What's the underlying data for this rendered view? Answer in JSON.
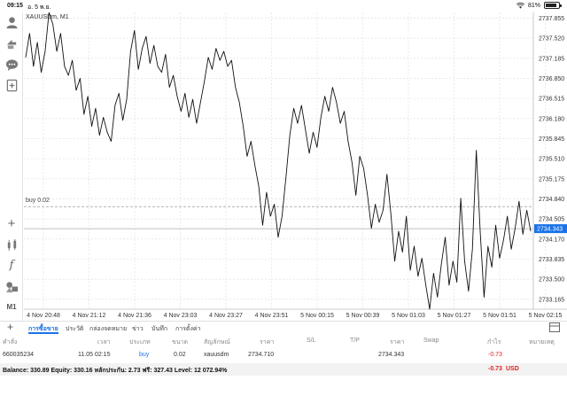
{
  "status": {
    "time": "09:15",
    "date": "อ. 5 พ.ย.",
    "battery": "81%",
    "battery_level": 0.81
  },
  "toolbar": {
    "icons": [
      "account-icon",
      "trade-icon",
      "chat-icon",
      "add-chart-icon",
      "crosshair-icon",
      "indicators-icon",
      "function-icon",
      "objects-icon"
    ],
    "timeframe": "M1"
  },
  "chart": {
    "symbol": "XAUUSDm, M1",
    "order_line_label": "buy 0.02",
    "current_price": "2734.343"
  },
  "chart_data": {
    "type": "line",
    "symbol": "XAUUSDm",
    "timeframe": "M1",
    "y_ticks": [
      "2737.855",
      "2737.520",
      "2737.185",
      "2736.850",
      "2736.515",
      "2736.180",
      "2735.845",
      "2735.510",
      "2735.175",
      "2734.840",
      "2734.505",
      "2734.170",
      "2733.835",
      "2733.500",
      "2733.165"
    ],
    "ylim": [
      2733.0,
      2737.95
    ],
    "x_ticks": [
      "4 Nov 20:48",
      "4 Nov 21:12",
      "4 Nov 21:36",
      "4 Nov 23:03",
      "4 Nov 23:27",
      "4 Nov 23:51",
      "5 Nov 00:15",
      "5 Nov 00:39",
      "5 Nov 01:03",
      "5 Nov 01:27",
      "5 Nov 01:51",
      "5 Nov 02:15"
    ],
    "order_line": {
      "label": "buy 0.02",
      "price": 2734.71
    },
    "current_price": 2734.343,
    "grid": true,
    "values": [
      2737.2,
      2737.6,
      2737.05,
      2737.45,
      2736.95,
      2737.3,
      2737.95,
      2737.75,
      2737.3,
      2737.6,
      2737.05,
      2736.9,
      2737.15,
      2736.65,
      2736.85,
      2736.25,
      2736.55,
      2736.05,
      2736.35,
      2735.9,
      2736.2,
      2735.95,
      2735.8,
      2736.4,
      2736.6,
      2736.15,
      2736.5,
      2737.3,
      2737.65,
      2737.0,
      2737.35,
      2737.55,
      2737.1,
      2737.4,
      2737.05,
      2736.95,
      2737.25,
      2736.7,
      2736.9,
      2736.55,
      2736.3,
      2736.6,
      2736.2,
      2736.5,
      2736.1,
      2736.45,
      2736.8,
      2737.2,
      2737.0,
      2737.35,
      2737.15,
      2737.3,
      2737.05,
      2737.15,
      2736.7,
      2736.45,
      2736.05,
      2735.55,
      2735.8,
      2735.4,
      2735.05,
      2734.4,
      2734.95,
      2734.55,
      2734.75,
      2734.2,
      2734.55,
      2735.2,
      2735.9,
      2736.35,
      2736.1,
      2736.4,
      2736.0,
      2735.6,
      2735.95,
      2735.7,
      2736.2,
      2736.55,
      2736.3,
      2736.7,
      2736.45,
      2736.1,
      2736.3,
      2735.8,
      2735.45,
      2734.9,
      2735.55,
      2735.35,
      2734.9,
      2734.35,
      2734.75,
      2734.45,
      2734.65,
      2735.25,
      2734.6,
      2733.8,
      2734.3,
      2733.95,
      2734.55,
      2733.65,
      2734.05,
      2733.55,
      2733.85,
      2733.4,
      2733.0,
      2733.6,
      2733.2,
      2733.75,
      2734.2,
      2733.4,
      2733.8,
      2733.45,
      2734.85,
      2733.8,
      2733.3,
      2734.0,
      2735.65,
      2734.3,
      2733.2,
      2734.05,
      2733.7,
      2734.4,
      2733.85,
      2734.15,
      2734.55,
      2734.0,
      2734.35,
      2734.8,
      2734.25,
      2734.65,
      2734.3
    ]
  },
  "tabs": {
    "add": "+",
    "items": [
      "การซื้อขาย",
      "ประวัติ",
      "กล่องจดหมาย",
      "ข่าว",
      "บันทึก",
      "การตั้งค่า"
    ],
    "active_index": 0
  },
  "table": {
    "headers": [
      "คำสั่ง",
      "เวลา",
      "ประเภท",
      "ขนาด",
      "สัญลักษณ์",
      "ราคา",
      "S/L",
      "T/P",
      "ราคา",
      "Swap",
      "กำไร",
      "หมายเหตุ"
    ],
    "row": [
      "660035234",
      "11.05 02:15",
      "buy",
      "0.02",
      "xauusdm",
      "2734.710",
      "",
      "",
      "2734.343",
      "",
      "-0.73",
      ""
    ],
    "balance": "Balance: 330.89 Equity: 330.16 หลักประกัน: 2.73 ฟรี: 327.43 Level: 12 072.94%",
    "total_profit": "-0.73",
    "currency": "USD"
  },
  "colors": {
    "accent": "#1a73e8",
    "loss": "#e02020",
    "price_line": "#111111",
    "price_tag": "#1a73e8",
    "grid": "#dcdcdc"
  }
}
